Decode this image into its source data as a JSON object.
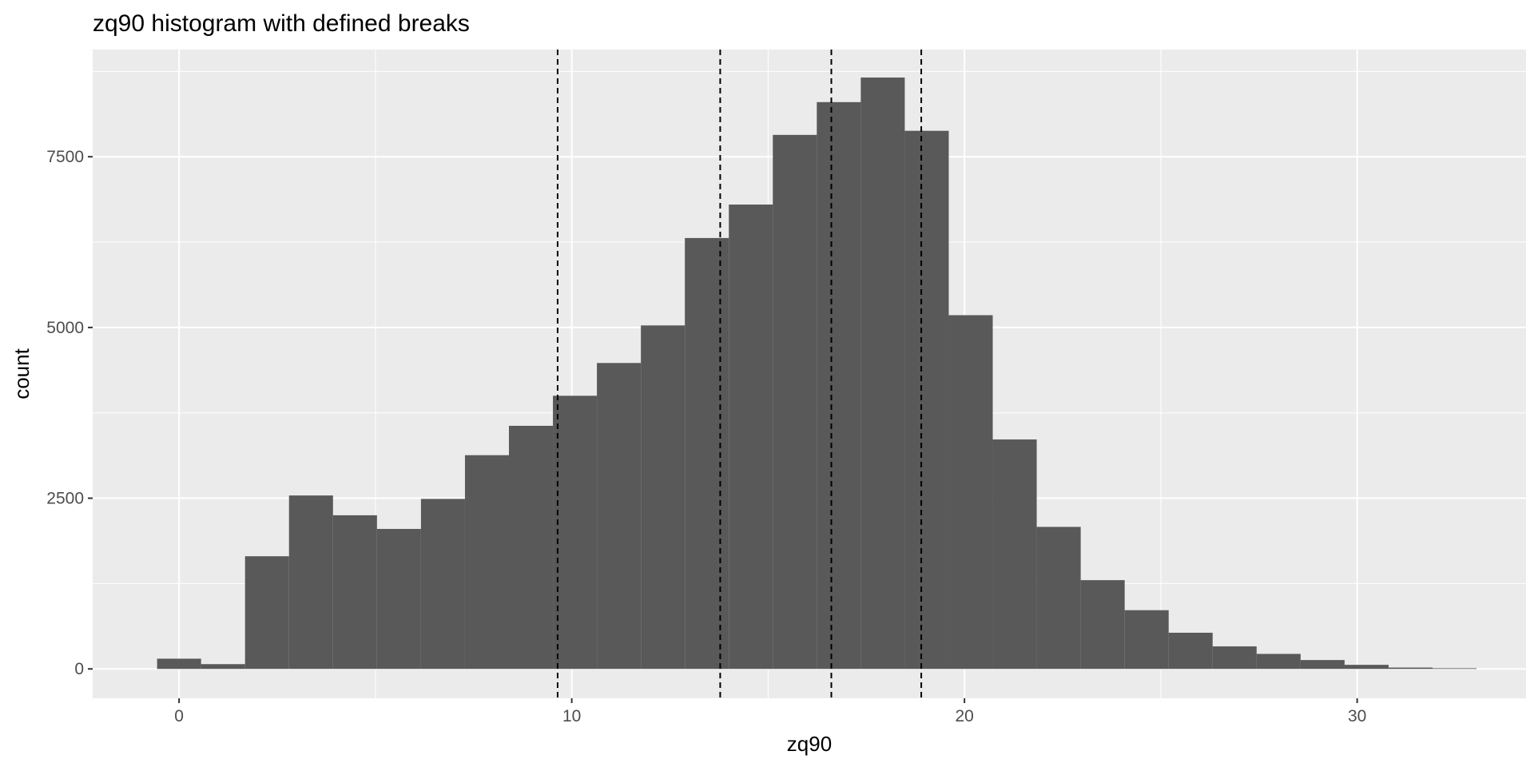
{
  "chart_data": {
    "type": "bar",
    "subtype": "histogram",
    "title": "zq90 histogram with defined breaks",
    "xlabel": "zq90",
    "ylabel": "count",
    "xlim": [
      -2.2,
      34.3
    ],
    "ylim": [
      -430,
      9070
    ],
    "x_ticks": [
      0,
      10,
      20,
      30
    ],
    "y_ticks": [
      0,
      2500,
      5000,
      7500
    ],
    "x_tick_labels": [
      "0",
      "10",
      "20",
      "30"
    ],
    "y_tick_labels": [
      "0",
      "2500",
      "5000",
      "7500"
    ],
    "bin_edges": [
      -0.56,
      0.56,
      1.68,
      2.8,
      3.92,
      5.04,
      6.16,
      7.28,
      8.4,
      9.52,
      10.64,
      11.76,
      12.88,
      14.0,
      15.12,
      16.24,
      17.36,
      18.48,
      19.6,
      20.72,
      21.84,
      22.96,
      24.08,
      25.2,
      26.32,
      27.44,
      28.56,
      29.68,
      30.8,
      31.92,
      33.04
    ],
    "counts": [
      150,
      70,
      1650,
      2540,
      2250,
      2050,
      2490,
      3130,
      3560,
      4000,
      4480,
      5030,
      6310,
      6800,
      7820,
      8300,
      8660,
      7880,
      5180,
      3360,
      2080,
      1300,
      860,
      530,
      330,
      220,
      130,
      60,
      20,
      10
    ],
    "vlines": [
      9.64,
      13.78,
      16.61,
      18.9
    ],
    "vline_style": "dashed",
    "bar_color": "#595959",
    "panel_color": "#ebebeb",
    "grid": true,
    "legend": "none"
  }
}
